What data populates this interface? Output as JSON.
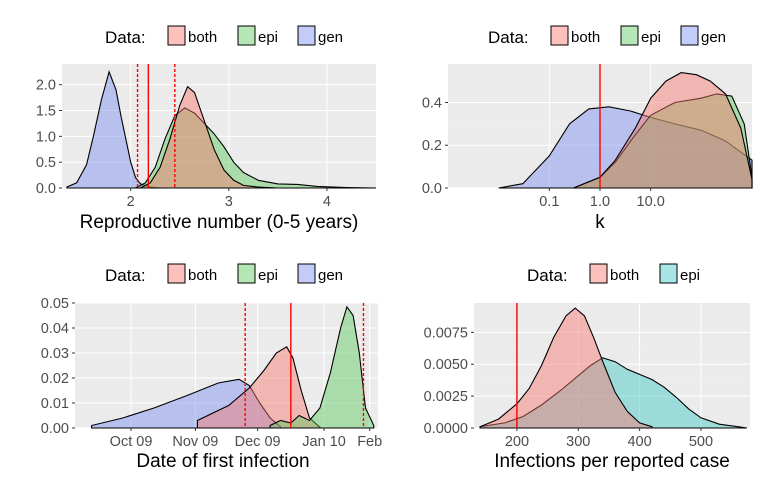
{
  "colors": {
    "both": "#f8766d",
    "epi": "#5cc85c",
    "gen": "#7b8ff0",
    "epi_alt": "#3fc7c7",
    "vline": "#ff0000"
  },
  "chart_data": [
    {
      "type": "area",
      "legend_title": "Data:",
      "legend": [
        "both",
        "epi",
        "gen"
      ],
      "xlabel": "Reproductive number (0-5 years)",
      "ylabel": "",
      "xlim": [
        1.3,
        4.5
      ],
      "ylim": [
        0,
        2.4
      ],
      "x_ticks": [
        {
          "v": 2,
          "label": "2"
        },
        {
          "v": 3,
          "label": "3"
        },
        {
          "v": 4,
          "label": "4"
        }
      ],
      "y_ticks": [
        {
          "v": 0,
          "label": "0.0"
        },
        {
          "v": 0.5,
          "label": "0.5"
        },
        {
          "v": 1.0,
          "label": "1.0"
        },
        {
          "v": 1.5,
          "label": "1.5"
        },
        {
          "v": 2.0,
          "label": "2.0"
        }
      ],
      "series": [
        {
          "name": "gen",
          "color_key": "gen",
          "x": [
            1.35,
            1.45,
            1.55,
            1.62,
            1.7,
            1.78,
            1.85,
            1.9,
            1.95,
            2.0,
            2.05,
            2.1,
            2.2,
            2.3
          ],
          "y": [
            0.02,
            0.1,
            0.45,
            1.0,
            1.7,
            2.25,
            1.9,
            1.4,
            0.95,
            0.5,
            0.2,
            0.08,
            0.02,
            0
          ]
        },
        {
          "name": "epi",
          "color_key": "epi",
          "x": [
            2.05,
            2.15,
            2.25,
            2.35,
            2.45,
            2.55,
            2.65,
            2.75,
            2.85,
            2.95,
            3.05,
            3.15,
            3.3,
            3.5,
            3.7,
            3.9,
            4.2,
            4.5
          ],
          "y": [
            0.0,
            0.1,
            0.4,
            0.95,
            1.4,
            1.55,
            1.45,
            1.25,
            1.05,
            0.8,
            0.5,
            0.3,
            0.15,
            0.08,
            0.07,
            0.03,
            0.01,
            0
          ]
        },
        {
          "name": "both",
          "color_key": "both",
          "x": [
            2.1,
            2.2,
            2.3,
            2.4,
            2.5,
            2.58,
            2.65,
            2.75,
            2.85,
            2.95,
            3.05,
            3.15,
            3.3,
            3.5
          ],
          "y": [
            0.0,
            0.1,
            0.4,
            0.95,
            1.6,
            1.96,
            1.85,
            1.3,
            0.75,
            0.35,
            0.15,
            0.05,
            0.02,
            0
          ]
        }
      ],
      "vlines": [
        {
          "v": 2.18,
          "style": "solid"
        },
        {
          "v": 2.07,
          "style": "dashed"
        },
        {
          "v": 2.45,
          "style": "dashed"
        }
      ]
    },
    {
      "type": "area",
      "legend_title": "Data:",
      "legend": [
        "both",
        "epi",
        "gen"
      ],
      "xlabel": "k",
      "ylabel": "",
      "x_scale": "log",
      "xlim": [
        0.001,
        1000
      ],
      "ylim": [
        0,
        0.58
      ],
      "x_ticks": [
        {
          "v": 0.1,
          "label": "0.1"
        },
        {
          "v": 1.0,
          "label": "1.0"
        },
        {
          "v": 10.0,
          "label": "10.0"
        }
      ],
      "y_ticks": [
        {
          "v": 0,
          "label": "0.0"
        },
        {
          "v": 0.2,
          "label": "0.2"
        },
        {
          "v": 0.4,
          "label": "0.4"
        }
      ],
      "series": [
        {
          "name": "gen",
          "color_key": "gen",
          "x": [
            0.01,
            0.03,
            0.1,
            0.25,
            0.6,
            1.5,
            4,
            10,
            30,
            100,
            300,
            1000
          ],
          "y": [
            0,
            0.02,
            0.15,
            0.3,
            0.37,
            0.38,
            0.36,
            0.33,
            0.3,
            0.27,
            0.22,
            0.13
          ]
        },
        {
          "name": "epi",
          "color_key": "epi",
          "x": [
            0.3,
            1,
            2,
            5,
            10,
            30,
            100,
            200,
            400,
            700,
            1000
          ],
          "y": [
            0,
            0.05,
            0.12,
            0.25,
            0.34,
            0.4,
            0.42,
            0.44,
            0.43,
            0.3,
            0.05
          ]
        },
        {
          "name": "both",
          "color_key": "both",
          "x": [
            0.3,
            1,
            2,
            5,
            10,
            20,
            40,
            80,
            150,
            300,
            600,
            1000
          ],
          "y": [
            0,
            0.05,
            0.13,
            0.28,
            0.42,
            0.5,
            0.54,
            0.53,
            0.5,
            0.44,
            0.28,
            0.04
          ]
        }
      ],
      "vlines": [
        {
          "v": 1.0,
          "style": "solid"
        }
      ]
    },
    {
      "type": "area",
      "legend_title": "Data:",
      "legend": [
        "both",
        "epi",
        "gen"
      ],
      "xlabel": "Date of first infection",
      "ylabel": "",
      "xlim": [
        "2009-09-12",
        "2010-02-05"
      ],
      "ylim": [
        0,
        0.05
      ],
      "x_ticks": [
        {
          "v": "2009-10-09",
          "label": "Oct 09"
        },
        {
          "v": "2009-11-09",
          "label": "Nov 09"
        },
        {
          "v": "2009-12-09",
          "label": "Dec 09"
        },
        {
          "v": "2010-01-10",
          "label": "Jan 10"
        },
        {
          "v": "2010-02-01",
          "label": "Feb"
        }
      ],
      "y_ticks": [
        {
          "v": 0,
          "label": "0.00"
        },
        {
          "v": 0.01,
          "label": "0.01"
        },
        {
          "v": 0.02,
          "label": "0.02"
        },
        {
          "v": 0.03,
          "label": "0.03"
        },
        {
          "v": 0.04,
          "label": "0.04"
        },
        {
          "v": 0.05,
          "label": "0.05"
        }
      ],
      "series": [
        {
          "name": "gen",
          "color_key": "gen",
          "x": [
            "2009-09-20",
            "2009-10-05",
            "2009-10-20",
            "2009-11-05",
            "2009-11-20",
            "2009-11-30",
            "2009-12-05",
            "2009-12-10",
            "2009-12-15",
            "2009-12-20"
          ],
          "y": [
            0.001,
            0.004,
            0.008,
            0.013,
            0.018,
            0.0195,
            0.017,
            0.01,
            0.004,
            0.0005
          ]
        },
        {
          "name": "both",
          "color_key": "both",
          "x": [
            "2009-11-10",
            "2009-11-25",
            "2009-12-05",
            "2009-12-12",
            "2009-12-18",
            "2009-12-23",
            "2009-12-26",
            "2009-12-30",
            "2010-01-03",
            "2010-01-08"
          ],
          "y": [
            0.003,
            0.009,
            0.016,
            0.023,
            0.03,
            0.0325,
            0.028,
            0.015,
            0.004,
            0.0003
          ]
        },
        {
          "name": "epi",
          "color_key": "epi",
          "x": [
            "2009-12-15",
            "2009-12-20",
            "2009-12-25",
            "2009-12-29",
            "2010-01-03",
            "2010-01-08",
            "2010-01-13",
            "2010-01-18",
            "2010-01-21",
            "2010-01-24",
            "2010-01-27",
            "2010-01-30",
            "2010-02-03"
          ],
          "y": [
            0.001,
            0.003,
            0.002,
            0.005,
            0.003,
            0.008,
            0.022,
            0.04,
            0.0485,
            0.045,
            0.03,
            0.008,
            0.001
          ]
        }
      ],
      "vlines": [
        {
          "v": "2009-12-25",
          "style": "solid"
        },
        {
          "v": "2009-12-03",
          "style": "dashed"
        },
        {
          "v": "2010-01-29",
          "style": "dashed"
        }
      ]
    },
    {
      "type": "area",
      "legend_title": "Data:",
      "legend": [
        "both",
        "epi"
      ],
      "xlabel": "Infections per reported case",
      "ylabel": "",
      "xlim": [
        130,
        580
      ],
      "ylim": [
        0,
        0.0098
      ],
      "x_ticks": [
        {
          "v": 200,
          "label": "200"
        },
        {
          "v": 300,
          "label": "300"
        },
        {
          "v": 400,
          "label": "400"
        },
        {
          "v": 500,
          "label": "500"
        }
      ],
      "y_ticks": [
        {
          "v": 0,
          "label": "0.0000"
        },
        {
          "v": 0.0025,
          "label": "0.0025"
        },
        {
          "v": 0.005,
          "label": "0.0050"
        },
        {
          "v": 0.0075,
          "label": "0.0075"
        }
      ],
      "series": [
        {
          "name": "epi",
          "color_key": "epi_alt",
          "x": [
            140,
            180,
            210,
            240,
            270,
            300,
            320,
            340,
            360,
            380,
            400,
            420,
            440,
            460,
            480,
            500,
            530,
            560,
            575
          ],
          "y": [
            0.0001,
            0.0004,
            0.0009,
            0.0018,
            0.0029,
            0.0041,
            0.0049,
            0.0055,
            0.0052,
            0.0046,
            0.0042,
            0.0038,
            0.0032,
            0.0024,
            0.0015,
            0.0008,
            0.0003,
            0.0001,
            0
          ]
        },
        {
          "name": "both",
          "color_key": "both",
          "x": [
            140,
            170,
            200,
            220,
            240,
            260,
            280,
            295,
            310,
            325,
            340,
            360,
            380,
            400,
            420
          ],
          "y": [
            0.0001,
            0.0007,
            0.0019,
            0.0031,
            0.0049,
            0.0071,
            0.0088,
            0.0094,
            0.0088,
            0.0071,
            0.0052,
            0.0028,
            0.0013,
            0.0004,
            0.0001
          ]
        }
      ],
      "vlines": [
        {
          "v": 200,
          "style": "solid"
        }
      ]
    }
  ]
}
